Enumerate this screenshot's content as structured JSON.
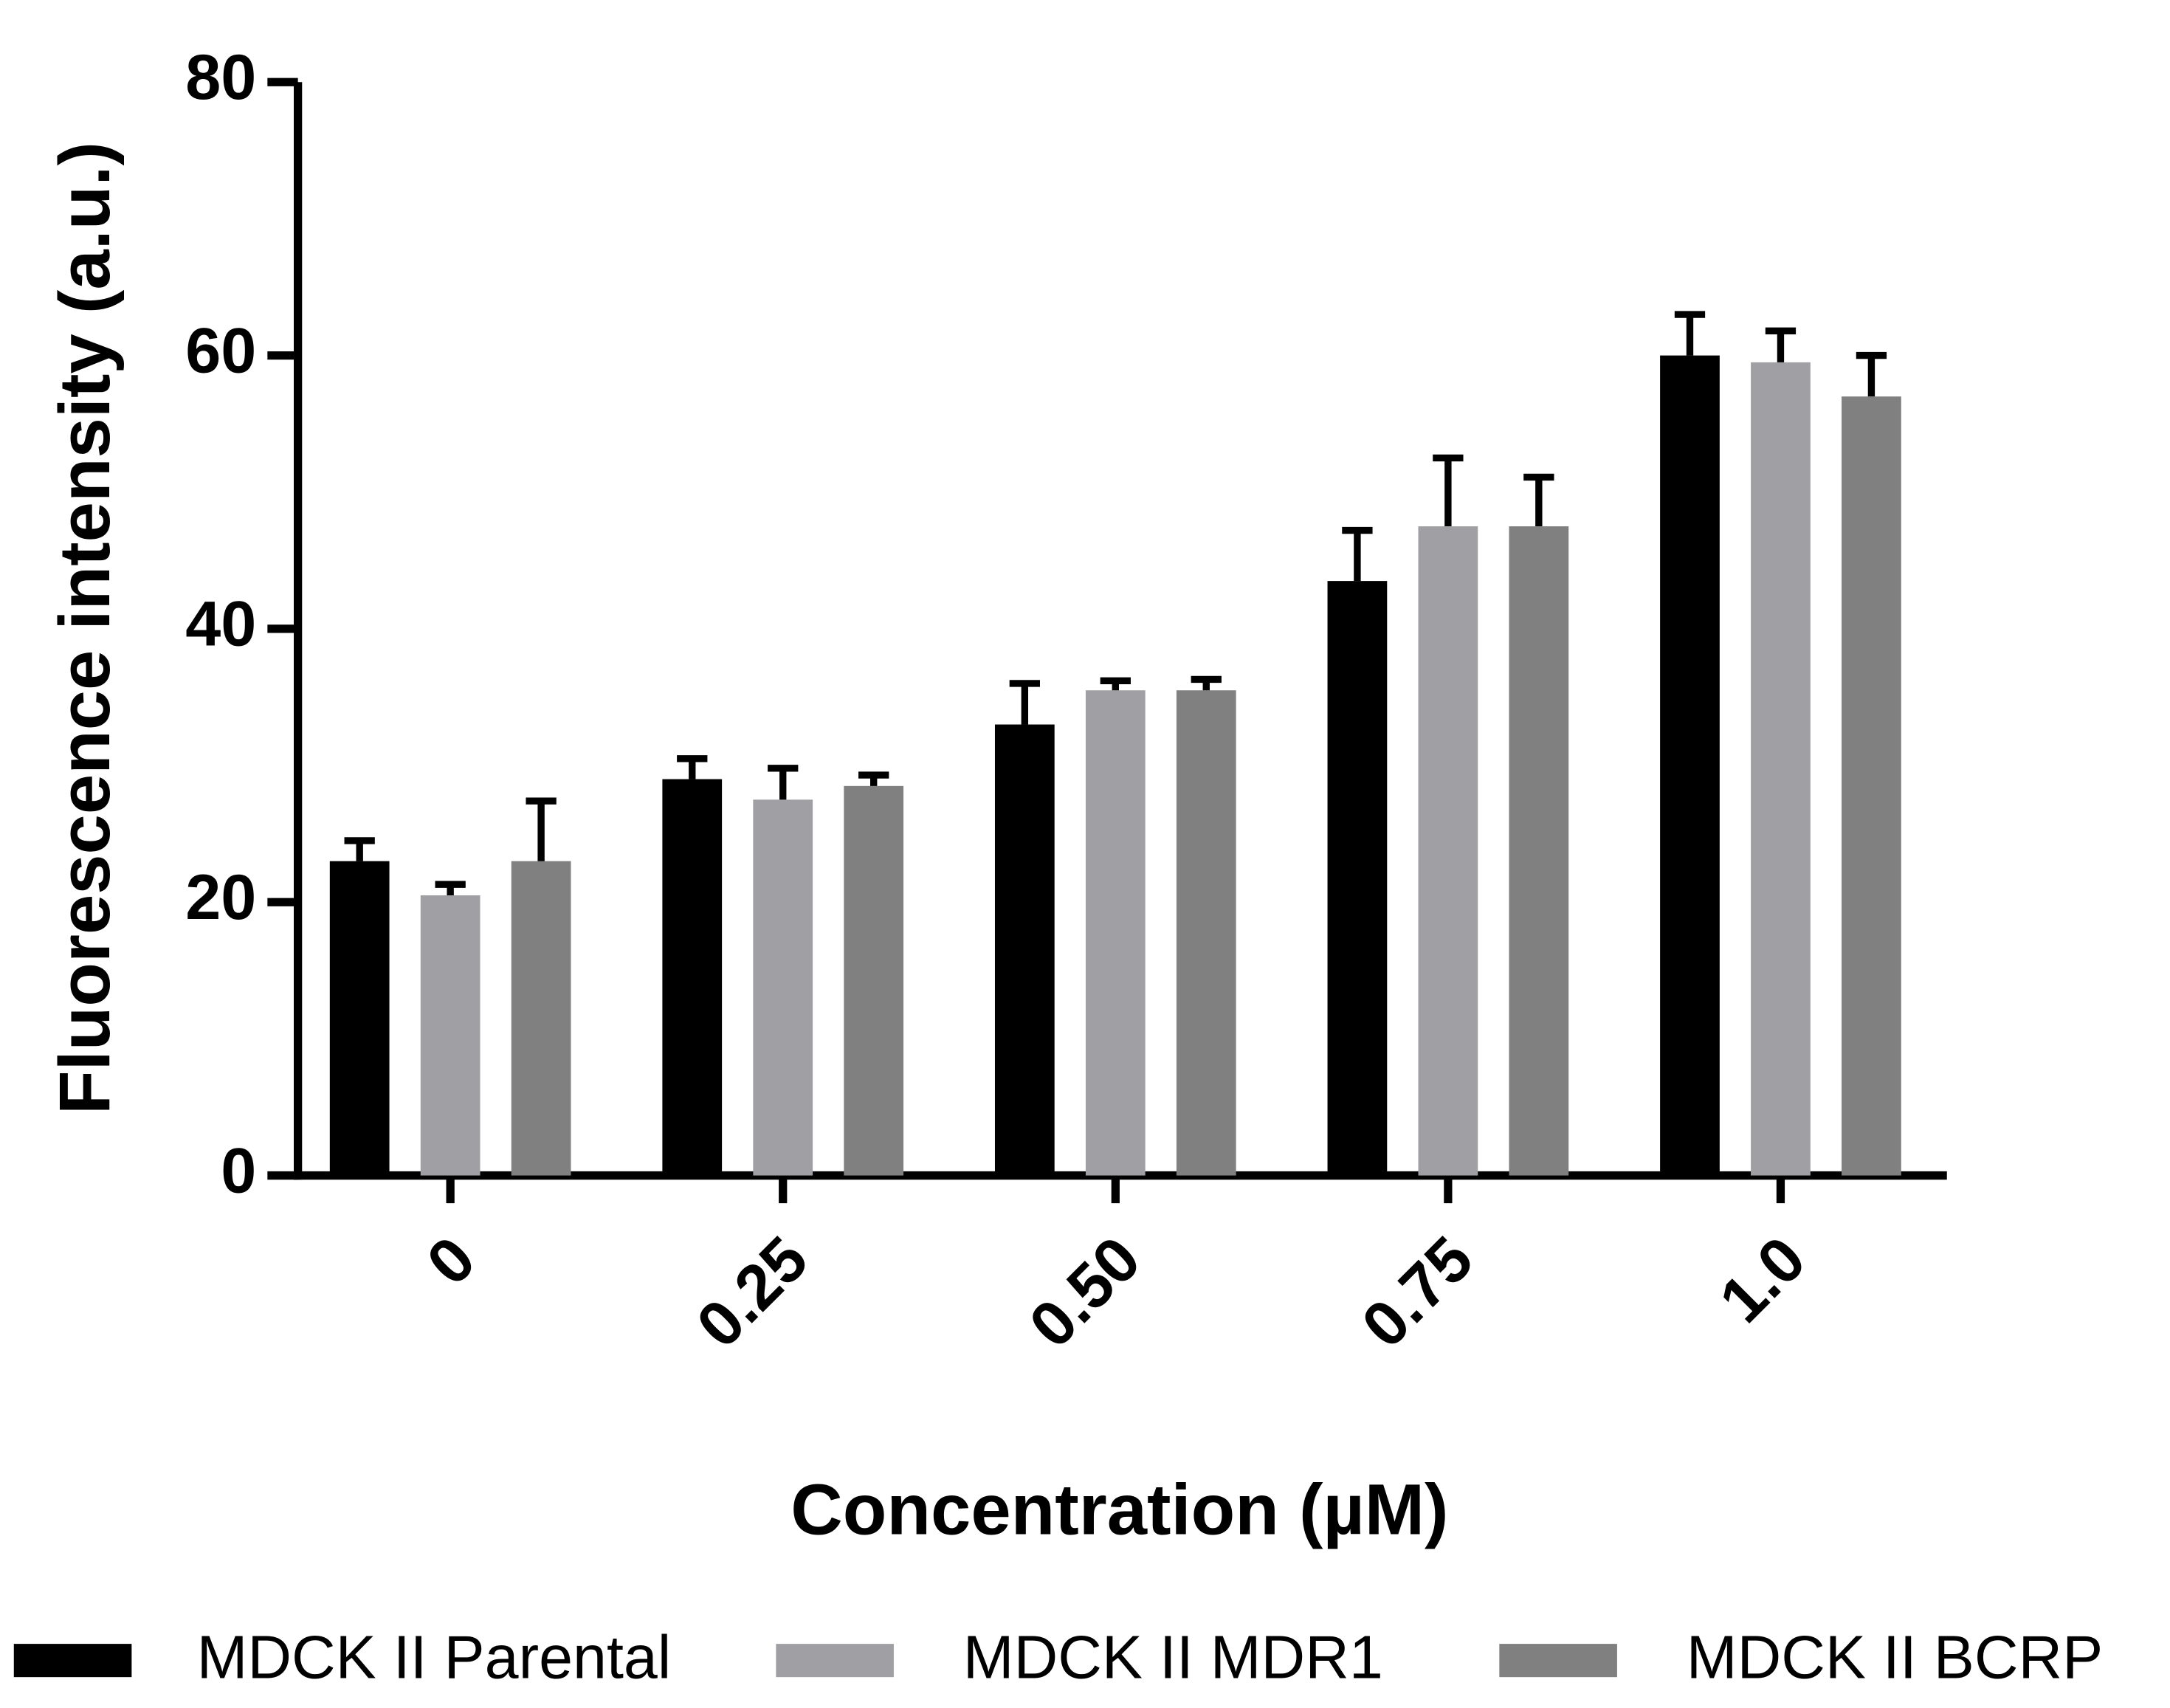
{
  "chart_data": {
    "type": "bar",
    "x_label": "Concentration (µM)",
    "y_label": "Fluorescence intensity (a.u.)",
    "categories": [
      "0",
      "0.25",
      "0.50",
      "0.75",
      "1.0"
    ],
    "series": [
      {
        "name": "MDCK II Parental",
        "color": "#000000",
        "values": [
          23,
          29,
          33,
          43.5,
          60
        ],
        "errors": [
          1.5,
          1.5,
          3,
          3.7,
          3
        ]
      },
      {
        "name": "MDCK II MDR1",
        "color": "#a0a0a4",
        "values": [
          20.5,
          27.5,
          35.5,
          47.5,
          59.5
        ],
        "errors": [
          0.8,
          2.3,
          0.7,
          5,
          2.3
        ]
      },
      {
        "name": "MDCK II BCRP",
        "color": "#808080",
        "values": [
          23,
          28.5,
          35.5,
          47.5,
          57
        ],
        "errors": [
          4.4,
          0.8,
          0.8,
          3.6,
          3
        ]
      }
    ],
    "ylim": [
      0,
      80
    ],
    "yticks": [
      0,
      20,
      40,
      60,
      80
    ],
    "grid": false,
    "legend": "bottom"
  }
}
